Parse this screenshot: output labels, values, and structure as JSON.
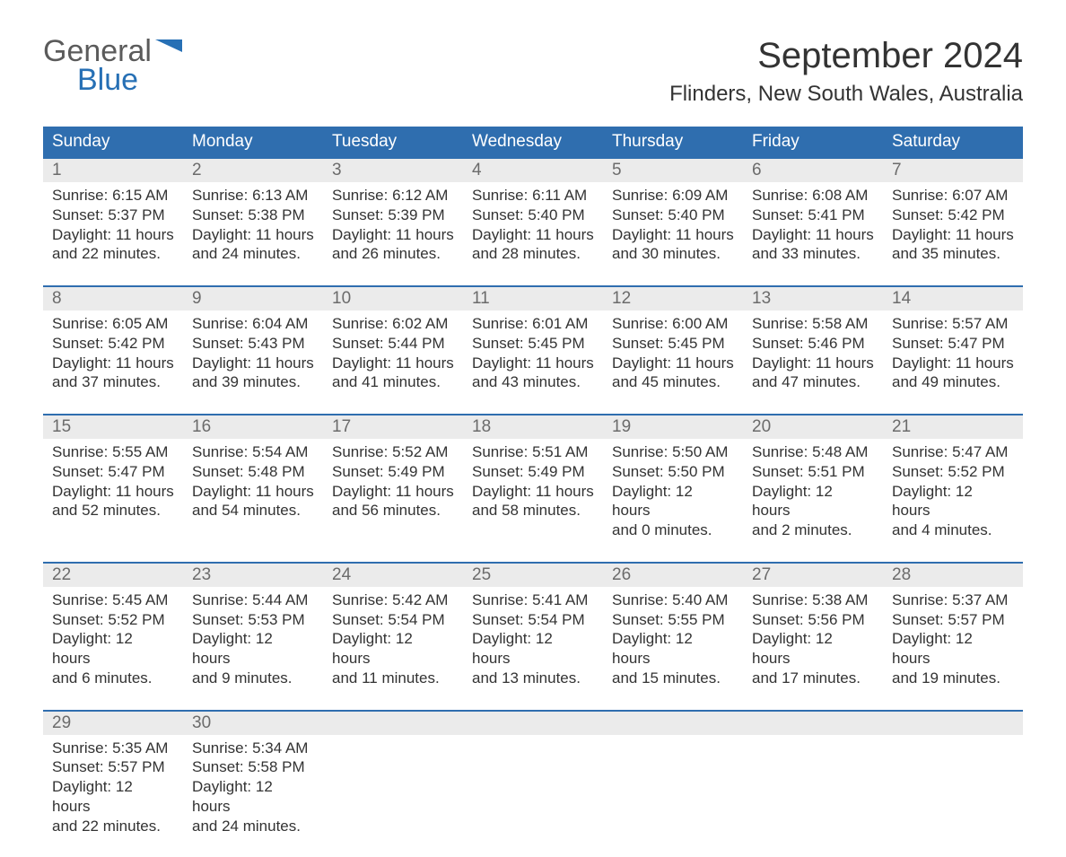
{
  "logo": {
    "general": "General",
    "blue": "Blue"
  },
  "header": {
    "month_title": "September 2024",
    "location": "Flinders, New South Wales, Australia"
  },
  "colors": {
    "header_bg": "#2f6eaf",
    "header_text": "#ffffff",
    "daynum_bg": "#ebebeb",
    "daynum_text": "#6b6b6b",
    "body_text": "#333333",
    "week_divider": "#2f6eaf",
    "logo_gray": "#5b5b5b",
    "logo_blue": "#2770b5",
    "background": "#ffffff"
  },
  "typography": {
    "title_fontsize": 40,
    "location_fontsize": 24,
    "header_fontsize": 19,
    "daynum_fontsize": 19,
    "body_fontsize": 17,
    "logo_fontsize": 34
  },
  "layout": {
    "columns": 7,
    "weeks": 5
  },
  "weekdays": [
    "Sunday",
    "Monday",
    "Tuesday",
    "Wednesday",
    "Thursday",
    "Friday",
    "Saturday"
  ],
  "weeks": [
    [
      {
        "day": "1",
        "sunrise": "Sunrise: 6:15 AM",
        "sunset": "Sunset: 5:37 PM",
        "dl1": "Daylight: 11 hours",
        "dl2": "and 22 minutes."
      },
      {
        "day": "2",
        "sunrise": "Sunrise: 6:13 AM",
        "sunset": "Sunset: 5:38 PM",
        "dl1": "Daylight: 11 hours",
        "dl2": "and 24 minutes."
      },
      {
        "day": "3",
        "sunrise": "Sunrise: 6:12 AM",
        "sunset": "Sunset: 5:39 PM",
        "dl1": "Daylight: 11 hours",
        "dl2": "and 26 minutes."
      },
      {
        "day": "4",
        "sunrise": "Sunrise: 6:11 AM",
        "sunset": "Sunset: 5:40 PM",
        "dl1": "Daylight: 11 hours",
        "dl2": "and 28 minutes."
      },
      {
        "day": "5",
        "sunrise": "Sunrise: 6:09 AM",
        "sunset": "Sunset: 5:40 PM",
        "dl1": "Daylight: 11 hours",
        "dl2": "and 30 minutes."
      },
      {
        "day": "6",
        "sunrise": "Sunrise: 6:08 AM",
        "sunset": "Sunset: 5:41 PM",
        "dl1": "Daylight: 11 hours",
        "dl2": "and 33 minutes."
      },
      {
        "day": "7",
        "sunrise": "Sunrise: 6:07 AM",
        "sunset": "Sunset: 5:42 PM",
        "dl1": "Daylight: 11 hours",
        "dl2": "and 35 minutes."
      }
    ],
    [
      {
        "day": "8",
        "sunrise": "Sunrise: 6:05 AM",
        "sunset": "Sunset: 5:42 PM",
        "dl1": "Daylight: 11 hours",
        "dl2": "and 37 minutes."
      },
      {
        "day": "9",
        "sunrise": "Sunrise: 6:04 AM",
        "sunset": "Sunset: 5:43 PM",
        "dl1": "Daylight: 11 hours",
        "dl2": "and 39 minutes."
      },
      {
        "day": "10",
        "sunrise": "Sunrise: 6:02 AM",
        "sunset": "Sunset: 5:44 PM",
        "dl1": "Daylight: 11 hours",
        "dl2": "and 41 minutes."
      },
      {
        "day": "11",
        "sunrise": "Sunrise: 6:01 AM",
        "sunset": "Sunset: 5:45 PM",
        "dl1": "Daylight: 11 hours",
        "dl2": "and 43 minutes."
      },
      {
        "day": "12",
        "sunrise": "Sunrise: 6:00 AM",
        "sunset": "Sunset: 5:45 PM",
        "dl1": "Daylight: 11 hours",
        "dl2": "and 45 minutes."
      },
      {
        "day": "13",
        "sunrise": "Sunrise: 5:58 AM",
        "sunset": "Sunset: 5:46 PM",
        "dl1": "Daylight: 11 hours",
        "dl2": "and 47 minutes."
      },
      {
        "day": "14",
        "sunrise": "Sunrise: 5:57 AM",
        "sunset": "Sunset: 5:47 PM",
        "dl1": "Daylight: 11 hours",
        "dl2": "and 49 minutes."
      }
    ],
    [
      {
        "day": "15",
        "sunrise": "Sunrise: 5:55 AM",
        "sunset": "Sunset: 5:47 PM",
        "dl1": "Daylight: 11 hours",
        "dl2": "and 52 minutes."
      },
      {
        "day": "16",
        "sunrise": "Sunrise: 5:54 AM",
        "sunset": "Sunset: 5:48 PM",
        "dl1": "Daylight: 11 hours",
        "dl2": "and 54 minutes."
      },
      {
        "day": "17",
        "sunrise": "Sunrise: 5:52 AM",
        "sunset": "Sunset: 5:49 PM",
        "dl1": "Daylight: 11 hours",
        "dl2": "and 56 minutes."
      },
      {
        "day": "18",
        "sunrise": "Sunrise: 5:51 AM",
        "sunset": "Sunset: 5:49 PM",
        "dl1": "Daylight: 11 hours",
        "dl2": "and 58 minutes."
      },
      {
        "day": "19",
        "sunrise": "Sunrise: 5:50 AM",
        "sunset": "Sunset: 5:50 PM",
        "dl1": "Daylight: 12 hours",
        "dl2": "and 0 minutes."
      },
      {
        "day": "20",
        "sunrise": "Sunrise: 5:48 AM",
        "sunset": "Sunset: 5:51 PM",
        "dl1": "Daylight: 12 hours",
        "dl2": "and 2 minutes."
      },
      {
        "day": "21",
        "sunrise": "Sunrise: 5:47 AM",
        "sunset": "Sunset: 5:52 PM",
        "dl1": "Daylight: 12 hours",
        "dl2": "and 4 minutes."
      }
    ],
    [
      {
        "day": "22",
        "sunrise": "Sunrise: 5:45 AM",
        "sunset": "Sunset: 5:52 PM",
        "dl1": "Daylight: 12 hours",
        "dl2": "and 6 minutes."
      },
      {
        "day": "23",
        "sunrise": "Sunrise: 5:44 AM",
        "sunset": "Sunset: 5:53 PM",
        "dl1": "Daylight: 12 hours",
        "dl2": "and 9 minutes."
      },
      {
        "day": "24",
        "sunrise": "Sunrise: 5:42 AM",
        "sunset": "Sunset: 5:54 PM",
        "dl1": "Daylight: 12 hours",
        "dl2": "and 11 minutes."
      },
      {
        "day": "25",
        "sunrise": "Sunrise: 5:41 AM",
        "sunset": "Sunset: 5:54 PM",
        "dl1": "Daylight: 12 hours",
        "dl2": "and 13 minutes."
      },
      {
        "day": "26",
        "sunrise": "Sunrise: 5:40 AM",
        "sunset": "Sunset: 5:55 PM",
        "dl1": "Daylight: 12 hours",
        "dl2": "and 15 minutes."
      },
      {
        "day": "27",
        "sunrise": "Sunrise: 5:38 AM",
        "sunset": "Sunset: 5:56 PM",
        "dl1": "Daylight: 12 hours",
        "dl2": "and 17 minutes."
      },
      {
        "day": "28",
        "sunrise": "Sunrise: 5:37 AM",
        "sunset": "Sunset: 5:57 PM",
        "dl1": "Daylight: 12 hours",
        "dl2": "and 19 minutes."
      }
    ],
    [
      {
        "day": "29",
        "sunrise": "Sunrise: 5:35 AM",
        "sunset": "Sunset: 5:57 PM",
        "dl1": "Daylight: 12 hours",
        "dl2": "and 22 minutes."
      },
      {
        "day": "30",
        "sunrise": "Sunrise: 5:34 AM",
        "sunset": "Sunset: 5:58 PM",
        "dl1": "Daylight: 12 hours",
        "dl2": "and 24 minutes."
      },
      null,
      null,
      null,
      null,
      null
    ]
  ]
}
